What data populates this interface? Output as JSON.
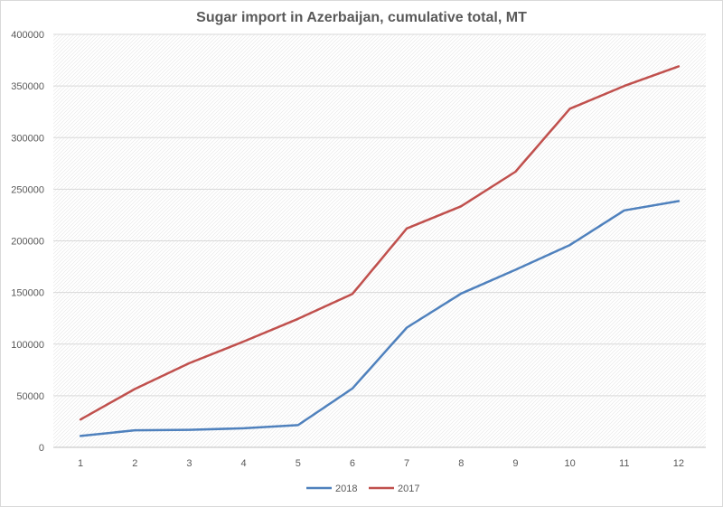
{
  "chart_data": {
    "type": "line",
    "title": "Sugar import in Azerbaijan, cumulative total, MT",
    "xlabel": "",
    "ylabel": "",
    "categories": [
      "1",
      "2",
      "3",
      "4",
      "5",
      "6",
      "7",
      "8",
      "9",
      "10",
      "11",
      "12"
    ],
    "ylim": [
      0,
      400000
    ],
    "yticks": [
      0,
      50000,
      100000,
      150000,
      200000,
      250000,
      300000,
      350000,
      400000
    ],
    "grid": true,
    "legend_position": "bottom",
    "series": [
      {
        "name": "2018",
        "color": "#4f81bd",
        "values": [
          11000,
          16500,
          17000,
          18500,
          21500,
          57000,
          116000,
          149000,
          172000,
          196000,
          229500,
          238500
        ]
      },
      {
        "name": "2017",
        "color": "#c0504d",
        "values": [
          27000,
          56500,
          81500,
          102500,
          124500,
          148500,
          212000,
          233500,
          267000,
          328000,
          350000,
          369000
        ]
      }
    ]
  }
}
